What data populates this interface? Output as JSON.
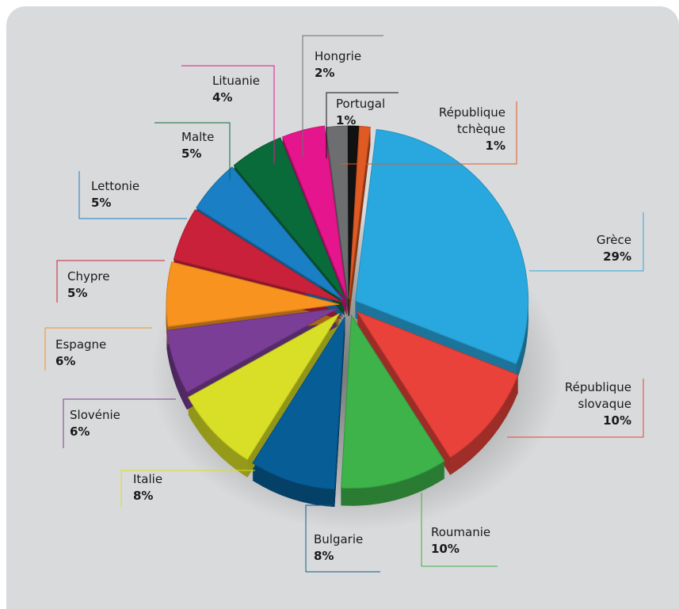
{
  "chart_data": {
    "type": "pie",
    "title": "",
    "slices": [
      {
        "label": "Grèce",
        "value": 29,
        "value_label": "29%",
        "color": "#29a8df"
      },
      {
        "label": "République slovaque",
        "value": 10,
        "value_label": "10%",
        "color": "#e8423a"
      },
      {
        "label": "Roumanie",
        "value": 10,
        "value_label": "10%",
        "color": "#3db34a"
      },
      {
        "label": "Bulgarie",
        "value": 8,
        "value_label": "8%",
        "color": "#075d96"
      },
      {
        "label": "Italie",
        "value": 8,
        "value_label": "8%",
        "color": "#d9df26"
      },
      {
        "label": "Slovénie",
        "value": 6,
        "value_label": "6%",
        "color": "#7a3e96"
      },
      {
        "label": "Espagne",
        "value": 6,
        "value_label": "6%",
        "color": "#f7931e"
      },
      {
        "label": "Chypre",
        "value": 5,
        "value_label": "5%",
        "color": "#c9213a"
      },
      {
        "label": "Lettonie",
        "value": 5,
        "value_label": "5%",
        "color": "#1a7fc4"
      },
      {
        "label": "Malte",
        "value": 5,
        "value_label": "5%",
        "color": "#0a6b3a"
      },
      {
        "label": "Lituanie",
        "value": 4,
        "value_label": "4%",
        "color": "#e5158d"
      },
      {
        "label": "Hongrie",
        "value": 2,
        "value_label": "2%",
        "color": "#6d6e70"
      },
      {
        "label": "Portugal",
        "value": 1,
        "value_label": "1%",
        "color": "#111111"
      },
      {
        "label": "République tchèque",
        "value": 1,
        "value_label": "1%",
        "color": "#e05a24"
      }
    ],
    "legend": "callout-labels"
  }
}
